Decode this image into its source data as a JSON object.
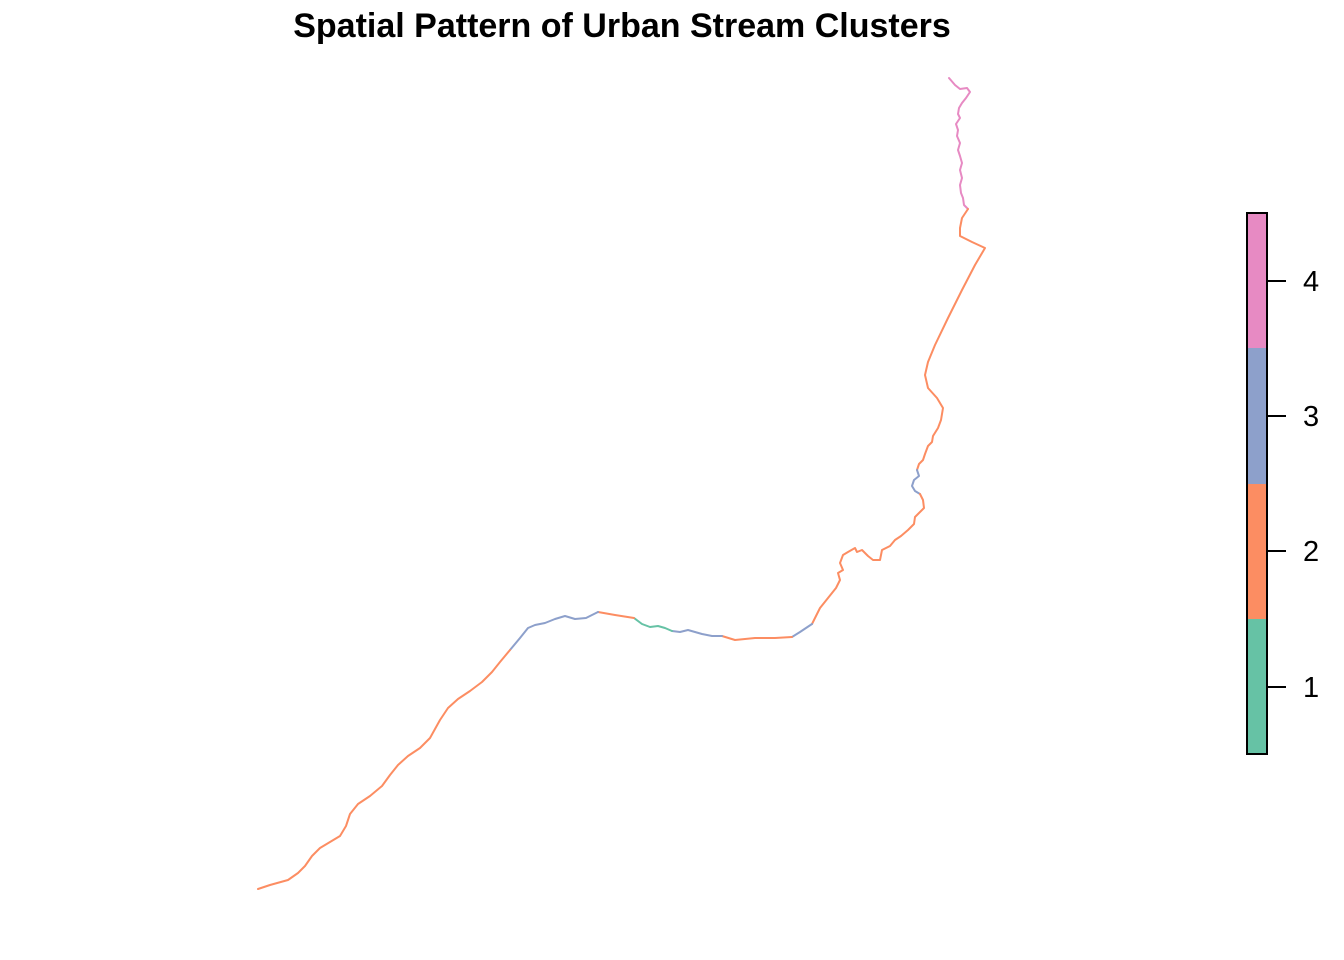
{
  "title": "Spatial Pattern of Urban Stream Clusters",
  "clusters": [
    {
      "id": 1,
      "label": "1",
      "color": "#66C2A5"
    },
    {
      "id": 2,
      "label": "2",
      "color": "#FC8D62"
    },
    {
      "id": 3,
      "label": "3",
      "color": "#8DA0CB"
    },
    {
      "id": 4,
      "label": "4",
      "color": "#E78AC3"
    }
  ],
  "legend": {
    "tick_labels": [
      "1",
      "2",
      "3",
      "4"
    ],
    "colors": [
      "#66C2A5",
      "#FC8D62",
      "#8DA0CB",
      "#E78AC3"
    ]
  }
}
